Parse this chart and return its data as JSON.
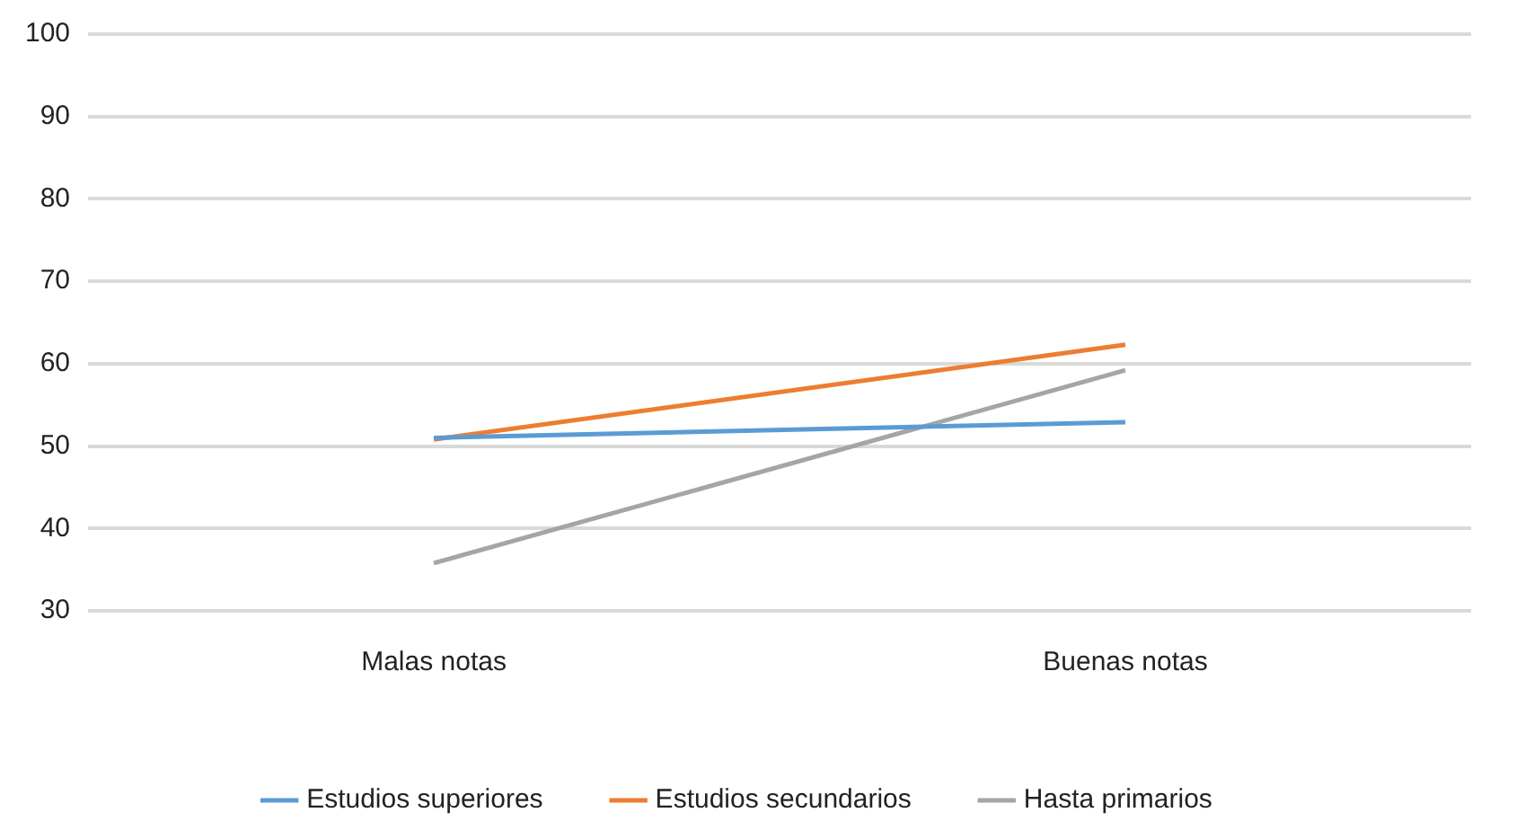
{
  "chart_data": {
    "type": "line",
    "categories": [
      "Malas notas",
      "Buenas notas"
    ],
    "series": [
      {
        "name": "Estudios superiores",
        "color": "#5b9bd5",
        "values": [
          51,
          52.9
        ]
      },
      {
        "name": "Estudios secundarios",
        "color": "#ed7d31",
        "values": [
          50.8,
          62.3
        ]
      },
      {
        "name": "Hasta primarios",
        "color": "#a5a5a5",
        "values": [
          35.8,
          59.2
        ]
      }
    ],
    "ylim": [
      30,
      100
    ],
    "yticks": [
      30,
      40,
      50,
      60,
      70,
      80,
      90,
      100
    ],
    "grid": "y",
    "legend": "bottom",
    "marker": "none",
    "line_style": "solid"
  }
}
